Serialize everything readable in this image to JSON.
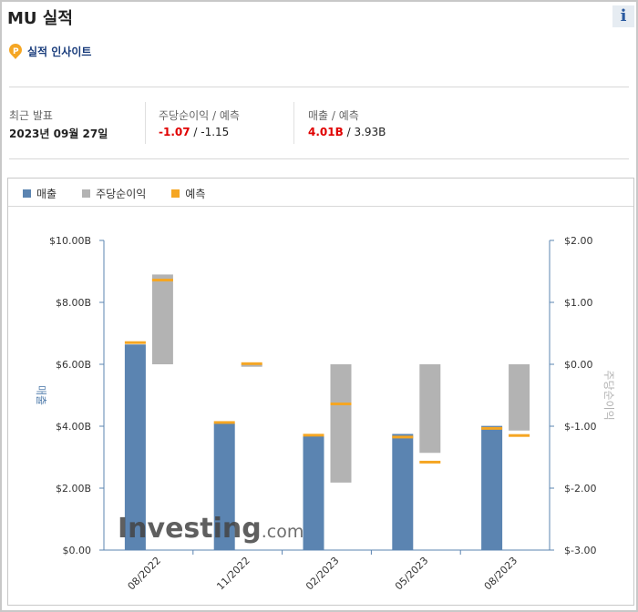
{
  "header": {
    "title": "MU 실적",
    "info_label": "i"
  },
  "insight": {
    "label": "실적 인사이트"
  },
  "stats": {
    "latest": {
      "label": "최근 발표",
      "value": "2023년 09월 27일"
    },
    "eps": {
      "label": "주당순이익 / 예측",
      "actual": "-1.07",
      "sep": " / ",
      "forecast": "-1.15"
    },
    "revenue": {
      "label": "매출 / 예측",
      "actual": "4.01B",
      "sep": " / ",
      "forecast": "3.93B"
    }
  },
  "colors": {
    "revenue": "#5b84b1",
    "eps": "#b3b3b3",
    "forecast": "#f5a623",
    "accent_red": "#e00000"
  },
  "watermark": {
    "brand": "Investing",
    "suffix": ".com"
  },
  "chart_data": {
    "type": "bar",
    "categories": [
      "08/2022",
      "11/2022",
      "02/2023",
      "05/2023",
      "08/2023"
    ],
    "legend": {
      "placement": "top-left",
      "entries": [
        "매출",
        "주당순이익",
        "예측"
      ]
    },
    "series": [
      {
        "name": "매출",
        "axis": "left",
        "values": [
          6.64,
          4.09,
          3.69,
          3.75,
          4.01
        ]
      },
      {
        "name": "주당순이익",
        "axis": "right",
        "values": [
          1.45,
          -0.04,
          -1.91,
          -1.43,
          -1.07
        ]
      },
      {
        "name": "예측",
        "kind": "revenue_forecast",
        "axis": "left",
        "values": [
          6.7,
          4.12,
          3.71,
          3.65,
          3.93
        ]
      },
      {
        "name": "예측",
        "kind": "eps_forecast",
        "axis": "right",
        "values": [
          1.36,
          0.01,
          -0.64,
          -1.58,
          -1.15
        ]
      }
    ],
    "left_axis": {
      "label": "매출",
      "ylim": [
        0,
        10
      ],
      "ticks": [
        "$0.00",
        "$2.00B",
        "$4.00B",
        "$6.00B",
        "$8.00B",
        "$10.00B"
      ]
    },
    "right_axis": {
      "label": "주당순이익",
      "ylim": [
        -3,
        2
      ],
      "ticks": [
        "$-3.00",
        "$-2.00",
        "$-1.00",
        "$0.00",
        "$1.00",
        "$2.00"
      ]
    },
    "grid": false
  }
}
